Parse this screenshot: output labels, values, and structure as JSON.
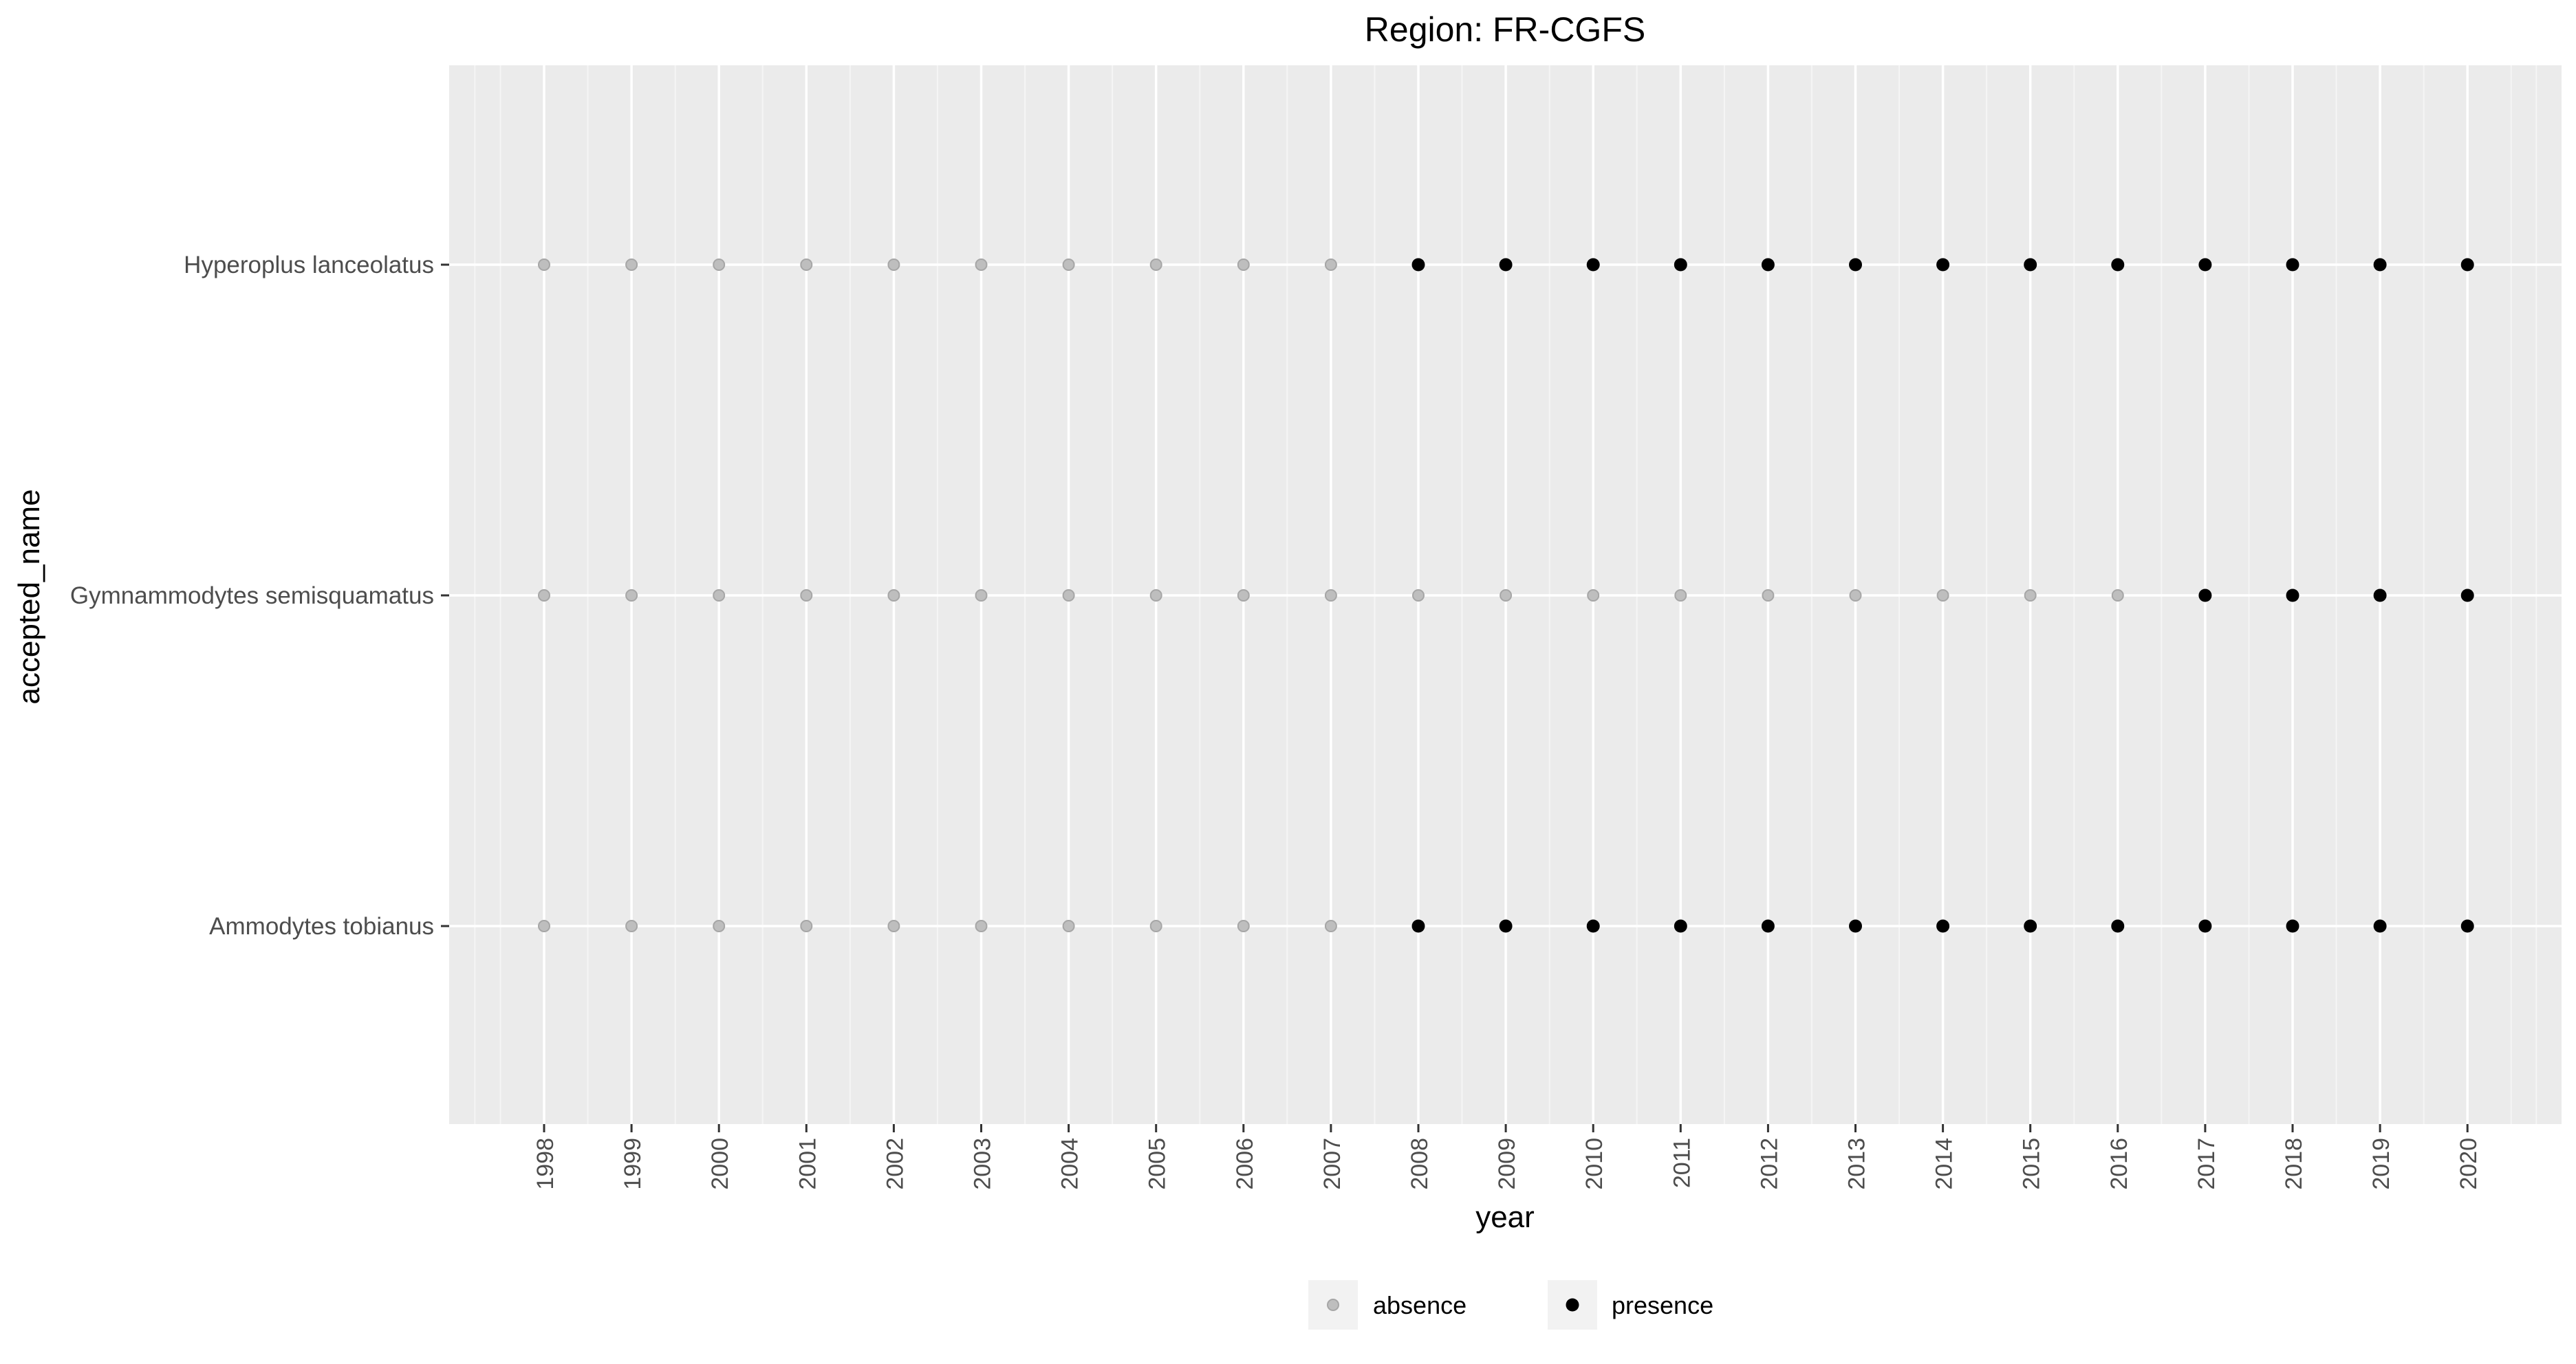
{
  "chart_data": {
    "type": "scatter",
    "title": "Region: FR-CGFS",
    "xlabel": "year",
    "ylabel": "accepted_name",
    "categories_x": [
      "1998",
      "1999",
      "2000",
      "2001",
      "2002",
      "2003",
      "2004",
      "2005",
      "2006",
      "2007",
      "2008",
      "2009",
      "2010",
      "2011",
      "2012",
      "2013",
      "2014",
      "2015",
      "2016",
      "2017",
      "2018",
      "2019",
      "2020"
    ],
    "categories_y": [
      "Ammodytes tobianus",
      "Gymnammodytes semisquamatus",
      "Hyperoplus lanceolatus"
    ],
    "series": [
      {
        "name": "Ammodytes tobianus",
        "values": [
          "absence",
          "absence",
          "absence",
          "absence",
          "absence",
          "absence",
          "absence",
          "absence",
          "absence",
          "absence",
          "presence",
          "presence",
          "presence",
          "presence",
          "presence",
          "presence",
          "presence",
          "presence",
          "presence",
          "presence",
          "presence",
          "presence",
          "presence"
        ]
      },
      {
        "name": "Gymnammodytes semisquamatus",
        "values": [
          "absence",
          "absence",
          "absence",
          "absence",
          "absence",
          "absence",
          "absence",
          "absence",
          "absence",
          "absence",
          "absence",
          "absence",
          "absence",
          "absence",
          "absence",
          "absence",
          "absence",
          "absence",
          "absence",
          "presence",
          "presence",
          "presence",
          "presence"
        ]
      },
      {
        "name": "Hyperoplus lanceolatus",
        "values": [
          "absence",
          "absence",
          "absence",
          "absence",
          "absence",
          "absence",
          "absence",
          "absence",
          "absence",
          "absence",
          "presence",
          "presence",
          "presence",
          "presence",
          "presence",
          "presence",
          "presence",
          "presence",
          "presence",
          "presence",
          "presence",
          "presence",
          "presence"
        ]
      }
    ],
    "legend": {
      "position": "bottom",
      "entries": [
        {
          "label": "absence",
          "color": "#bebebe"
        },
        {
          "label": "presence",
          "color": "#000000"
        }
      ]
    },
    "colors": {
      "panel_background": "#ebebeb",
      "grid_major": "#ffffff",
      "absence_fill": "#bebebe",
      "absence_stroke": "#a6a6a6",
      "presence": "#000000",
      "tick_text": "#4d4d4d",
      "axis_title": "#000000"
    },
    "grid": true
  }
}
